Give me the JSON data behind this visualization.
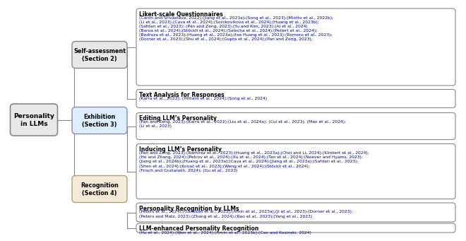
{
  "title": "Personality\nin LLMs",
  "level1": [
    {
      "label": "Self-assessment\n(Section 2)",
      "color": "#e8e8e8",
      "border_color": "#888888"
    },
    {
      "label": "Exhibition\n(Section 3)",
      "color": "#ddeeff",
      "border_color": "#8888bb"
    },
    {
      "label": "Recognition\n(Section 4)",
      "color": "#f5ead8",
      "border_color": "#aaa080"
    }
  ],
  "level2": [
    {
      "parent": 0,
      "label": "Likert-scale Questionnaires",
      "body": "(Caron and Srivastava, 2022);(Jiang et al., 2023a);(Song et al., 2023);(Miotto et al., 2022b);\n(Li et al., 2023);(Cava et al., 2024);(Sorokovikova et al., 2024);(Huang et al., 2023b);\n(Safdari et al., 2023); (Pan and Zeng, 2023);(Yu and Kim, 2023);(Ai et al., 2024)\n(Barua et al., 2024);(Stöckli et al., 2024);(Salecha et al., 2024);(Pellert et al., 2024);\n(Bodroza et al., 2023);(Huang et al., 2023a);(tse Huang et al., 2023);(Romero et al., 2023);\n(Dorner et al., 2023);(Shu et al., 2024);(Gupta et al., 2024);(Pan and Zeng, 2023);"
    },
    {
      "parent": 0,
      "label": "Text Analysis for Responses",
      "body": "(Karra et al., 2022); (Hilliard et al., 2024);(Song et al., 2024)"
    },
    {
      "parent": 1,
      "label": "Editing LLM’s Personality",
      "body": "(Pan and Zeng, 2023);(Karra et al., 2022);(Liu et al., 2024a); (Cui et al., 2023); (Mao et al., 2024);\n(Li et al., 2023)"
    },
    {
      "parent": 1,
      "label": "Inducing LLM’s Personality",
      "body": "(Pan and Zeng, 2023);(Ramirez et al., 2023);(Huang et al., 2023a);(Choi and Li, 2024);(Klinkert et al., 2024);\n(He and Zhang, 2024);(Petrov et al., 2024);(Xu et al., 2024);(Tan et al., 2024);(Noever and Hyams, 2023);\n(Jiang et al., 2024b);(Huang et al., 2023a);(Cava et al., 2024);(Jiang et al., 2023a);(Safdari et al., 2023);\n(Shen et al., 2024);(Kovač et al., 2023);(Weng et al., 2024);(Stöckli et al., 2024);\n(Frisch and Giulianelli, 2024); (Gu et al., 2023)"
    },
    {
      "parent": 2,
      "label": "Personality Recognition by LLMs",
      "body": "(Peters et al., 2024);(Ganesan et al., 2023);(Amin et al., 2023a);(Ji et al., 2023);(Dorner et al., 2023);\n(Peters and Matz, 2023);(Zhang et al., 2024);(Rao et al., 2023);(Yang et al., 2023)"
    },
    {
      "parent": 2,
      "label": "LLM-enhanced Personality Recognition",
      "body": "(Hu et al., 2024);(Wen et al., 2024);(Amin et al., 2023b);(Cao and Kosinski, 2024)"
    }
  ],
  "root_color": "#e8e8e8",
  "root_border_color": "#888888",
  "box_fill_color": "#ffffff",
  "box_border_color": "#888888",
  "text_color_body": "#00008b",
  "text_color_title": "#000000",
  "line_color": "#888888",
  "bg_color": "#ffffff"
}
